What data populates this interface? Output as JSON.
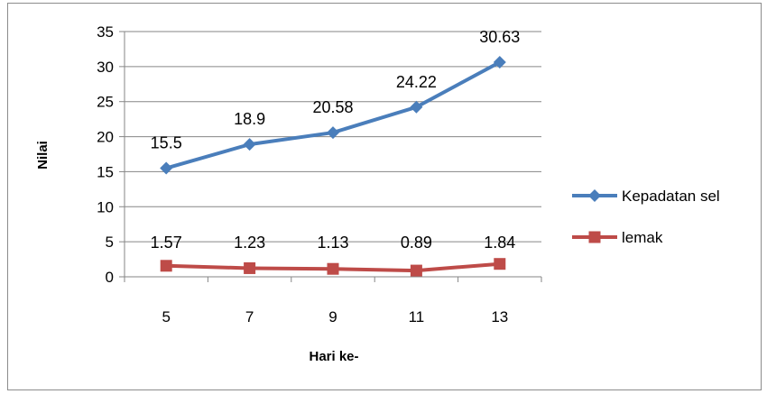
{
  "chart_data": {
    "type": "line",
    "categories": [
      "5",
      "7",
      "9",
      "11",
      "13"
    ],
    "series": [
      {
        "name": "Kepadatan sel",
        "values": [
          15.5,
          18.9,
          20.58,
          24.22,
          30.63
        ],
        "labels": [
          "15.5",
          "18.9",
          "20.58",
          "24.22",
          "30.63"
        ],
        "color": "#4a7ebb",
        "marker": "diamond"
      },
      {
        "name": "lemak",
        "values": [
          1.57,
          1.23,
          1.13,
          0.89,
          1.84
        ],
        "labels": [
          "1.57",
          "1.23",
          "1.13",
          "0.89",
          "1.84"
        ],
        "color": "#be4b48",
        "marker": "square"
      }
    ],
    "yticks": [
      "0",
      "5",
      "10",
      "15",
      "20",
      "25",
      "30",
      "35"
    ],
    "ylim": [
      0,
      35
    ],
    "xlabel": "Hari ke-",
    "ylabel": "Nilai",
    "grid": true,
    "legend_position": "right",
    "gridline_color": "#868686"
  }
}
